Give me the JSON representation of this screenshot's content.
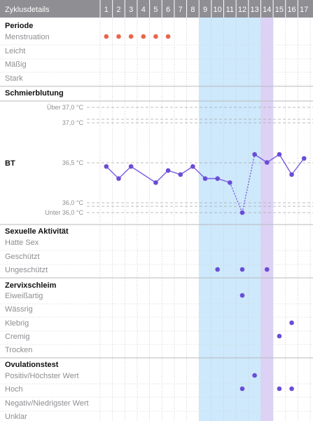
{
  "header": {
    "title": "Zyklusdetails",
    "days": [
      "1",
      "2",
      "3",
      "4",
      "5",
      "6",
      "7",
      "8",
      "9",
      "10",
      "11",
      "12",
      "13",
      "14",
      "15",
      "16",
      "17"
    ]
  },
  "colors": {
    "header_bg": "#8e8e93",
    "fertile_window": "#cde9fb",
    "ovulation_day": "#ddd2f5",
    "period_dot": "#e8664a",
    "purple_dot": "#6a4cd6",
    "bbt_line": "#7a5be0"
  },
  "highlights": {
    "fertile_days": [
      9,
      13
    ],
    "ovulation_day": 14
  },
  "sections": {
    "period": {
      "title": "Periode",
      "rows": [
        "Menstruation",
        "Leicht",
        "Mäßig",
        "Stark"
      ]
    },
    "spotting": {
      "title": "Schmierblutung"
    },
    "bbt": {
      "title": "BT",
      "labels": [
        "Über 37,0 °C",
        "37,0 °C",
        "36,5 °C",
        "36,0 °C",
        "Unter 36,0 °C"
      ]
    },
    "sexual": {
      "title": "Sexuelle Aktivität",
      "rows": [
        "Hatte Sex",
        "Geschützt",
        "Ungeschützt"
      ]
    },
    "mucus": {
      "title": "Zervixschleim",
      "rows": [
        "Eiweißartig",
        "Wässrig",
        "Klebrig",
        "Cremig",
        "Trocken"
      ]
    },
    "ovulation": {
      "title": "Ovulationstest",
      "rows": [
        "Positiv/Höchster Wert",
        "Hoch",
        "Negativ/Niedrigster Wert",
        "Unklar"
      ]
    }
  },
  "marks": {
    "menstruation_days": [
      1,
      2,
      3,
      4,
      5,
      6
    ],
    "ungeschuetzt_days": [
      10,
      12,
      14
    ],
    "eiweissartig_days": [
      12
    ],
    "klebrig_days": [
      16
    ],
    "cremig_days": [
      15
    ],
    "positiv_days": [
      13
    ],
    "hoch_days": [
      12,
      15,
      16
    ]
  },
  "chart_data": {
    "type": "line",
    "x": [
      1,
      2,
      3,
      5,
      6,
      7,
      8,
      9,
      10,
      11,
      12,
      13,
      14,
      15,
      16,
      17
    ],
    "y": [
      36.45,
      36.3,
      36.45,
      36.25,
      36.4,
      36.35,
      36.45,
      36.3,
      36.3,
      36.25,
      "Unter 36,0 °C",
      36.6,
      36.5,
      36.6,
      36.35,
      36.55
    ],
    "ylim": [
      36.0,
      37.0
    ]
  }
}
